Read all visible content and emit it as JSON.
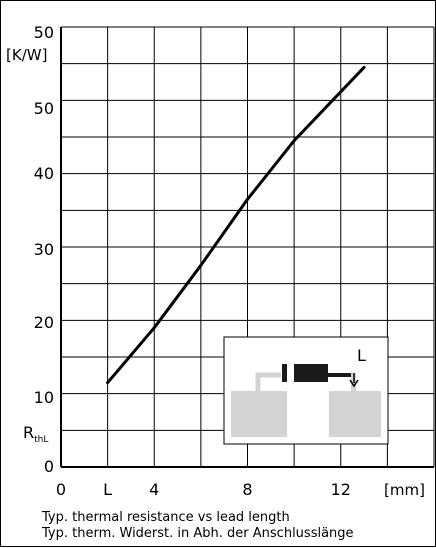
{
  "chart_data": {
    "type": "line",
    "ylabel": "RthL",
    "ylabel_main": "R",
    "ylabel_sub": "thL",
    "yunit": "[K/W]",
    "xunit": "[mm]",
    "ytick_labels": [
      "50",
      "50",
      "40",
      "30",
      "20",
      "10",
      "0"
    ],
    "xtick_labels": [
      "0",
      "L",
      "4",
      "8",
      "12"
    ],
    "xlim": [
      0,
      16
    ],
    "ylim": [
      0,
      60
    ],
    "grid": true,
    "series": [
      {
        "x": [
          2.0,
          4.0,
          6.0,
          8.0,
          10.0,
          13.0
        ],
        "y": [
          11.5,
          19.0,
          27.5,
          36.5,
          44.5,
          54.5
        ]
      }
    ],
    "caption_lines": [
      "Typ. thermal resistance vs lead length",
      "Typ. therm. Widerst. in Abh. der Anschlusslänge"
    ],
    "inset_label": "L",
    "line_color": "#000000",
    "inset_color": "#d3d3d3"
  }
}
